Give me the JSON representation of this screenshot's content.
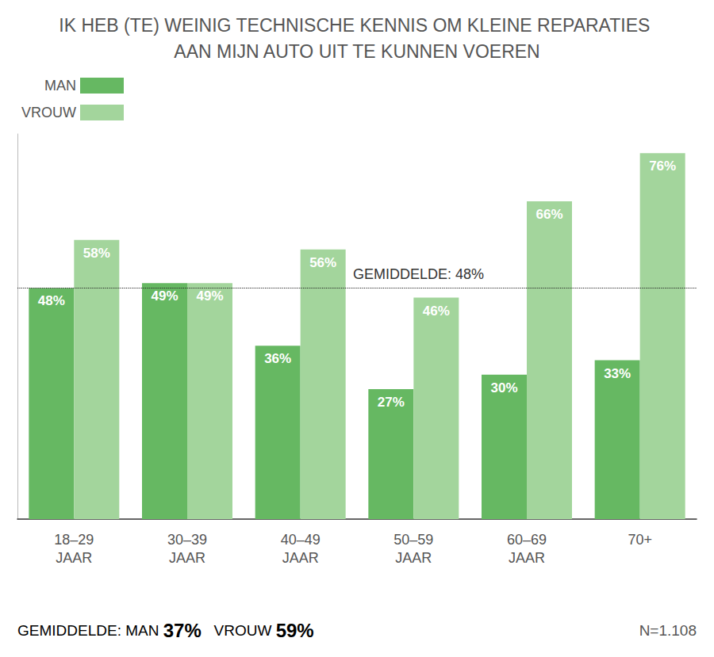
{
  "chart_data": {
    "type": "bar",
    "title": "IK HEB (TE) WEINIG TECHNISCHE KENNIS OM KLEINE REPARATIES AAN MIJN AUTO UIT TE KUNNEN VOEREN",
    "categories": [
      "18–29 JAAR",
      "30–39 JAAR",
      "40–49 JAAR",
      "50–59 JAAR",
      "60–69 JAAR",
      "70+"
    ],
    "series": [
      {
        "name": "MAN",
        "color": "#66b862",
        "values": [
          48,
          49,
          36,
          27,
          30,
          33
        ],
        "value_labels": [
          "48%",
          "49%",
          "36%",
          "27%",
          "30%",
          "33%"
        ]
      },
      {
        "name": "VROUW",
        "color": "#a3d59c",
        "values": [
          58,
          49,
          56,
          46,
          66,
          76
        ],
        "value_labels": [
          "58%",
          "49%",
          "56%",
          "46%",
          "66%",
          "76%"
        ]
      }
    ],
    "ylim": [
      0,
      80
    ],
    "tick_labels": "x",
    "grid": false,
    "legend": "top-left",
    "data_labels": true,
    "reference_line": {
      "value": 48,
      "label": "GEMIDDELDE: 48%"
    },
    "footer": {
      "label": "GEMIDDELDE:",
      "items": [
        {
          "name": "MAN",
          "value": 37,
          "label": "37%"
        },
        {
          "name": "VROUW",
          "value": 59,
          "label": "59%"
        }
      ]
    },
    "note": "N=1.108"
  }
}
